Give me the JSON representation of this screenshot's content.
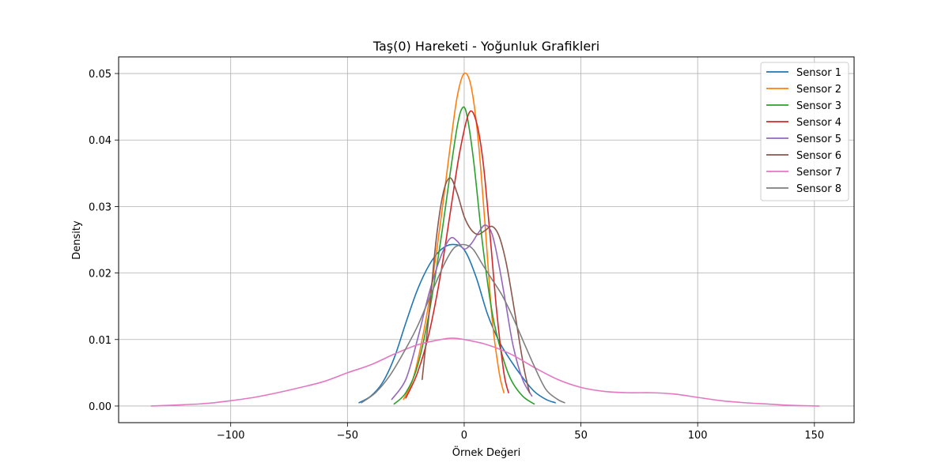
{
  "chart_data": {
    "type": "line",
    "title": "Taş(0) Hareketi - Yoğunluk Grafikleri",
    "xlabel": "Örnek Değeri",
    "ylabel": "Density",
    "xlim": [
      -148,
      167
    ],
    "ylim": [
      -0.0025,
      0.0525
    ],
    "xticks": [
      -100,
      -50,
      0,
      50,
      100,
      150
    ],
    "xtick_labels": [
      "−100",
      "−50",
      "0",
      "50",
      "100",
      "150"
    ],
    "yticks": [
      0.0,
      0.01,
      0.02,
      0.03,
      0.04,
      0.05
    ],
    "ytick_labels": [
      "0.00",
      "0.01",
      "0.02",
      "0.03",
      "0.04",
      "0.05"
    ],
    "grid": true,
    "legend_position": "top-right",
    "series": [
      {
        "name": "Sensor 1",
        "color": "#1f77b4",
        "x": [
          -45,
          -40,
          -35,
          -30,
          -25,
          -20,
          -15,
          -10,
          -5,
          0,
          5,
          10,
          15,
          20,
          25,
          30,
          35,
          39
        ],
        "y": [
          0.0005,
          0.0015,
          0.0035,
          0.0072,
          0.0125,
          0.0175,
          0.0212,
          0.0235,
          0.0243,
          0.0235,
          0.0195,
          0.0138,
          0.0097,
          0.0068,
          0.0043,
          0.0022,
          0.001,
          0.0005
        ]
      },
      {
        "name": "Sensor 2",
        "color": "#ff7f0e",
        "x": [
          -26,
          -22,
          -18,
          -14,
          -10,
          -6,
          -3,
          0,
          3,
          6,
          9,
          12,
          15,
          17
        ],
        "y": [
          0.001,
          0.004,
          0.01,
          0.018,
          0.028,
          0.039,
          0.0465,
          0.05,
          0.048,
          0.04,
          0.027,
          0.013,
          0.005,
          0.002
        ]
      },
      {
        "name": "Sensor 3",
        "color": "#2ca02c",
        "x": [
          -30,
          -25,
          -20,
          -15,
          -10,
          -6,
          -3,
          -1,
          1,
          4,
          8,
          12,
          16,
          20,
          25,
          30
        ],
        "y": [
          0.0003,
          0.002,
          0.006,
          0.014,
          0.025,
          0.035,
          0.042,
          0.0447,
          0.044,
          0.037,
          0.024,
          0.014,
          0.008,
          0.004,
          0.0015,
          0.0003
        ]
      },
      {
        "name": "Sensor 4",
        "color": "#d62728",
        "x": [
          -25,
          -20,
          -15,
          -10,
          -6,
          -2,
          2,
          5,
          8,
          11,
          14,
          17,
          19
        ],
        "y": [
          0.0012,
          0.005,
          0.011,
          0.02,
          0.029,
          0.038,
          0.044,
          0.043,
          0.037,
          0.026,
          0.014,
          0.005,
          0.002
        ]
      },
      {
        "name": "Sensor 5",
        "color": "#9467bd",
        "x": [
          -31,
          -25,
          -20,
          -15,
          -10,
          -6,
          -3,
          0,
          3,
          6,
          9,
          12,
          15,
          18,
          21,
          25,
          29
        ],
        "y": [
          0.001,
          0.004,
          0.01,
          0.017,
          0.0225,
          0.0252,
          0.0248,
          0.0236,
          0.0244,
          0.026,
          0.0272,
          0.0258,
          0.021,
          0.015,
          0.009,
          0.004,
          0.0015
        ]
      },
      {
        "name": "Sensor 6",
        "color": "#8c564b",
        "x": [
          -18,
          -15,
          -12,
          -9,
          -6,
          -3,
          0,
          3,
          6,
          9,
          12,
          15,
          18,
          21,
          24,
          26,
          28
        ],
        "y": [
          0.004,
          0.014,
          0.025,
          0.032,
          0.0343,
          0.032,
          0.0285,
          0.0265,
          0.0258,
          0.0264,
          0.027,
          0.0255,
          0.0215,
          0.0155,
          0.009,
          0.005,
          0.002
        ]
      },
      {
        "name": "Sensor 7",
        "color": "#e377c2",
        "x": [
          -134,
          -120,
          -110,
          -100,
          -90,
          -80,
          -70,
          -60,
          -50,
          -40,
          -30,
          -20,
          -10,
          -5,
          0,
          10,
          20,
          30,
          40,
          50,
          60,
          70,
          80,
          90,
          100,
          110,
          120,
          130,
          140,
          152
        ],
        "y": [
          0.0,
          0.0002,
          0.0004,
          0.0008,
          0.0013,
          0.002,
          0.0028,
          0.0037,
          0.005,
          0.0062,
          0.0078,
          0.0092,
          0.01,
          0.0102,
          0.01,
          0.0092,
          0.0078,
          0.0058,
          0.004,
          0.0028,
          0.0022,
          0.002,
          0.002,
          0.0018,
          0.0013,
          0.0008,
          0.0005,
          0.0003,
          0.0001,
          0.0
        ]
      },
      {
        "name": "Sensor 8",
        "color": "#7f7f7f",
        "x": [
          -44,
          -38,
          -32,
          -26,
          -20,
          -14,
          -9,
          -5,
          -2,
          1,
          4,
          8,
          12,
          16,
          20,
          25,
          30,
          35,
          40,
          43
        ],
        "y": [
          0.0005,
          0.002,
          0.0045,
          0.008,
          0.012,
          0.017,
          0.021,
          0.0235,
          0.0242,
          0.0242,
          0.0235,
          0.0212,
          0.019,
          0.0168,
          0.014,
          0.01,
          0.006,
          0.0025,
          0.001,
          0.0005
        ]
      }
    ]
  }
}
